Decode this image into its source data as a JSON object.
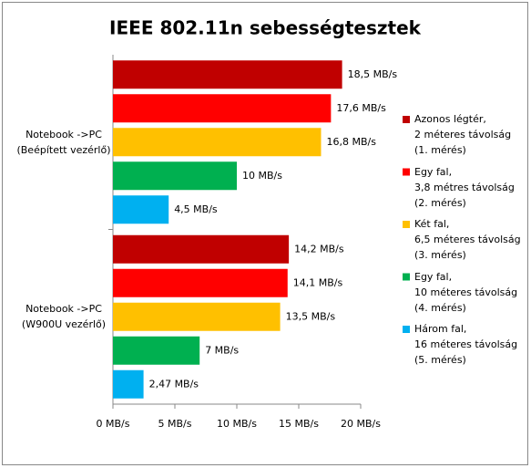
{
  "chart_data": {
    "type": "bar",
    "orientation": "horizontal",
    "title": "IEEE 802.11n sebességtesztek",
    "categories": [
      "Notebook ->PC\n(Beépített vezérlő)",
      "Notebook ->PC\n(W900U vezérlő)"
    ],
    "series": [
      {
        "name": "Azonos légtér,\n2 méteres távolság\n(1. mérés)",
        "color": "#c00000",
        "values": [
          18.5,
          14.2
        ],
        "value_labels": [
          "18,5 MB/s",
          "14,2 MB/s"
        ]
      },
      {
        "name": "Egy fal,\n3,8 métres távolság\n(2. mérés)",
        "color": "#ff0000",
        "values": [
          17.6,
          14.1
        ],
        "value_labels": [
          "17,6 MB/s",
          "14,1 MB/s"
        ]
      },
      {
        "name": "Két fal,\n6,5 méteres távolság\n(3. mérés)",
        "color": "#ffc000",
        "values": [
          16.8,
          13.5
        ],
        "value_labels": [
          "16,8 MB/s",
          "13,5 MB/s"
        ]
      },
      {
        "name": "Egy fal,\n10 méteres távolság\n(4. mérés)",
        "color": "#00b050",
        "values": [
          10,
          7
        ],
        "value_labels": [
          "10 MB/s",
          "7 MB/s"
        ]
      },
      {
        "name": "Három fal,\n16 méteres távolság\n(5. mérés)",
        "color": "#00b0f0",
        "values": [
          4.5,
          2.47
        ],
        "value_labels": [
          "4,5 MB/s",
          "2,47 MB/s"
        ]
      }
    ],
    "xlim": [
      0,
      20
    ],
    "xticks": [
      {
        "value": 0,
        "label": "0 MB/s"
      },
      {
        "value": 5,
        "label": "5 MB/s"
      },
      {
        "value": 10,
        "label": "10 MB/s"
      },
      {
        "value": 15,
        "label": "15 MB/s"
      },
      {
        "value": 20,
        "label": "20 MB/s"
      }
    ],
    "grid": false,
    "legend": "right"
  }
}
